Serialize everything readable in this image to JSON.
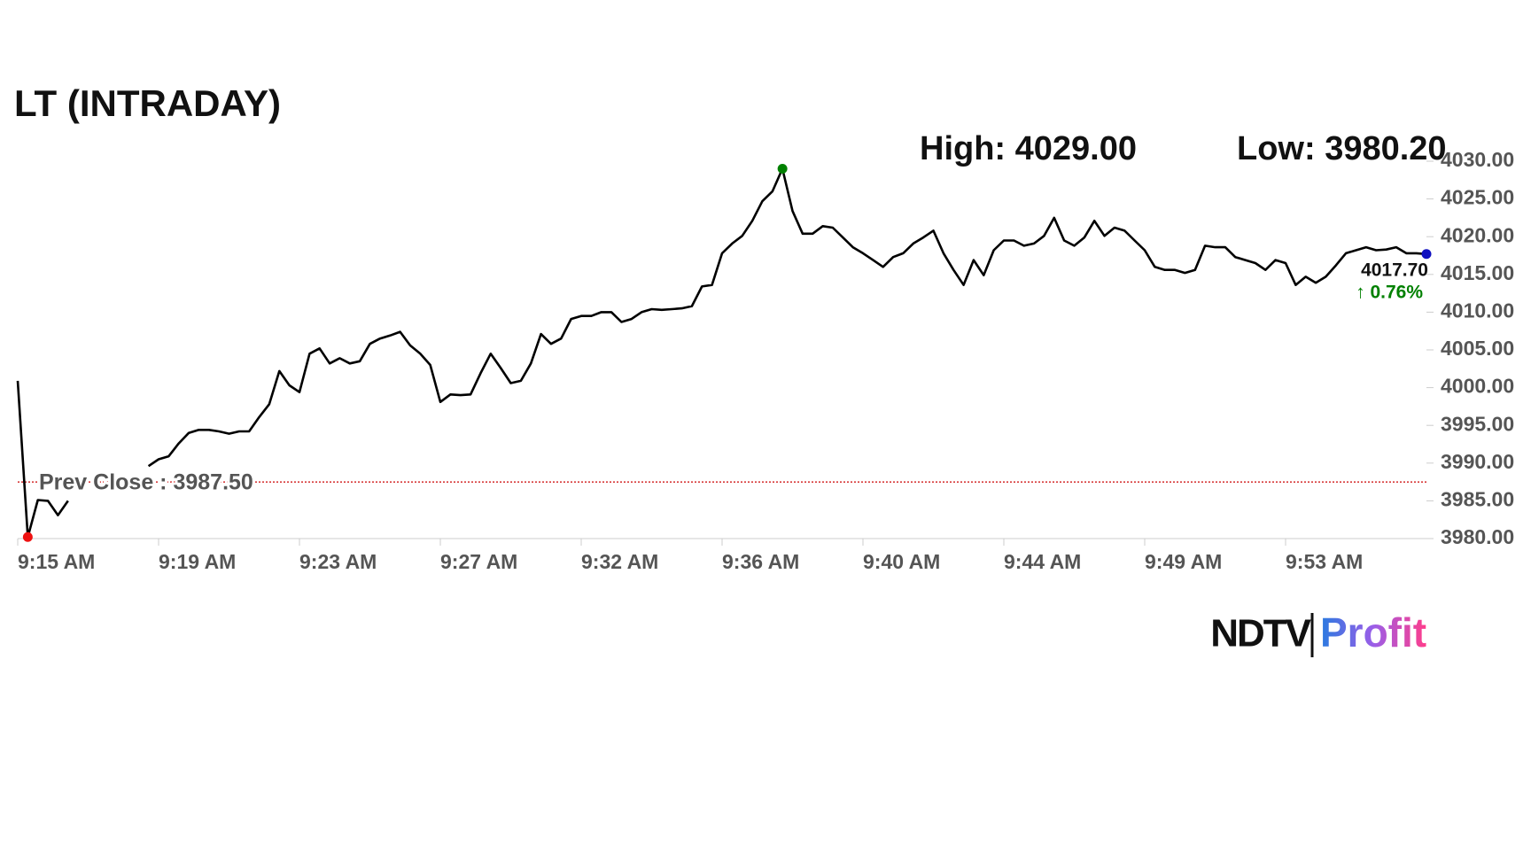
{
  "chart_data": {
    "type": "line",
    "title": "LT (INTRADAY)",
    "high_text": "High: 4029.00",
    "low_text": "Low: 3980.20",
    "xlim": [
      0,
      140
    ],
    "xticks": [
      {
        "value": 0,
        "label": "9:15 AM"
      },
      {
        "value": 14,
        "label": "9:19 AM"
      },
      {
        "value": 28,
        "label": "9:23 AM"
      },
      {
        "value": 42,
        "label": "9:27 AM"
      },
      {
        "value": 56,
        "label": "9:32 AM"
      },
      {
        "value": 70,
        "label": "9:36 AM"
      },
      {
        "value": 84,
        "label": "9:40 AM"
      },
      {
        "value": 98,
        "label": "9:44 AM"
      },
      {
        "value": 112,
        "label": "9:49 AM"
      },
      {
        "value": 126,
        "label": "9:53 AM"
      }
    ],
    "ylim": [
      3980,
      4030
    ],
    "yticks": [
      {
        "value": 3980,
        "label": "3980.00"
      },
      {
        "value": 3985,
        "label": "3985.00"
      },
      {
        "value": 3990,
        "label": "3990.00"
      },
      {
        "value": 3995,
        "label": "3995.00"
      },
      {
        "value": 4000,
        "label": "4000.00"
      },
      {
        "value": 4005,
        "label": "4005.00"
      },
      {
        "value": 4010,
        "label": "4010.00"
      },
      {
        "value": 4015,
        "label": "4015.00"
      },
      {
        "value": 4020,
        "label": "4020.00"
      },
      {
        "value": 4025,
        "label": "4025.00"
      },
      {
        "value": 4030,
        "label": "4030.00"
      }
    ],
    "series": [
      {
        "name": "LT",
        "color": "#000000",
        "values": [
          4000.9,
          3980.2,
          3985.1,
          3985.0,
          3983.1,
          3985.0,
          null,
          null,
          null,
          null,
          null,
          null,
          null,
          3989.6,
          3990.5,
          3990.9,
          3992.6,
          3994.0,
          3994.4,
          3994.4,
          3994.2,
          3993.9,
          3994.2,
          3994.2,
          3996.1,
          3997.8,
          4002.2,
          4000.3,
          3999.4,
          4004.5,
          4005.2,
          4003.2,
          4003.9,
          4003.2,
          4003.5,
          4005.8,
          4006.5,
          4006.9,
          4007.4,
          4005.6,
          4004.5,
          4003.0,
          3998.1,
          3999.1,
          3999.0,
          3999.1,
          4001.9,
          4004.5,
          4002.6,
          4000.6,
          4000.9,
          4003.2,
          4007.1,
          4005.8,
          4006.5,
          4009.1,
          4009.5,
          4009.5,
          4010.0,
          4010.0,
          4008.7,
          4009.1,
          4010.0,
          4010.4,
          4010.3,
          4010.4,
          4010.5,
          4010.8,
          4013.4,
          4013.6,
          4017.8,
          4019.1,
          4020.1,
          4022.1,
          4024.7,
          4026.0,
          4029.0,
          4023.4,
          4020.4,
          4020.4,
          4021.4,
          4021.2,
          4019.9,
          4018.6,
          4017.8,
          4016.9,
          4016.0,
          4017.3,
          4017.8,
          4019.1,
          4019.9,
          4020.8,
          4017.8,
          4015.6,
          4013.6,
          4016.9,
          4014.9,
          4018.2,
          4019.5,
          4019.5,
          4018.8,
          4019.1,
          4020.1,
          4022.5,
          4019.5,
          4018.8,
          4019.9,
          4022.1,
          4020.1,
          4021.2,
          4020.8,
          4019.5,
          4018.2,
          4016.0,
          4015.6,
          4015.6,
          4015.2,
          4015.6,
          4018.8,
          4018.6,
          4018.6,
          4017.3,
          4016.9,
          4016.5,
          4015.6,
          4016.9,
          4016.5,
          4013.6,
          4014.7,
          4013.9,
          4014.7,
          4016.2,
          4017.8,
          4018.2,
          4018.6,
          4018.2,
          4018.3,
          4018.6,
          4017.8,
          4017.8,
          4017.7
        ]
      }
    ],
    "high_color": "#008000",
    "low_color": "#ee1111",
    "last_color": "#1010c0",
    "prev_close": 3987.5,
    "prev_close_text": "Prev Close : 3987.50",
    "prev_close_color": "#cc0000",
    "last_text": "4017.70",
    "change_text": "↑ 0.76%",
    "change_color": "#008000",
    "logo": {
      "left": "NDTV",
      "right": "Profit"
    }
  }
}
